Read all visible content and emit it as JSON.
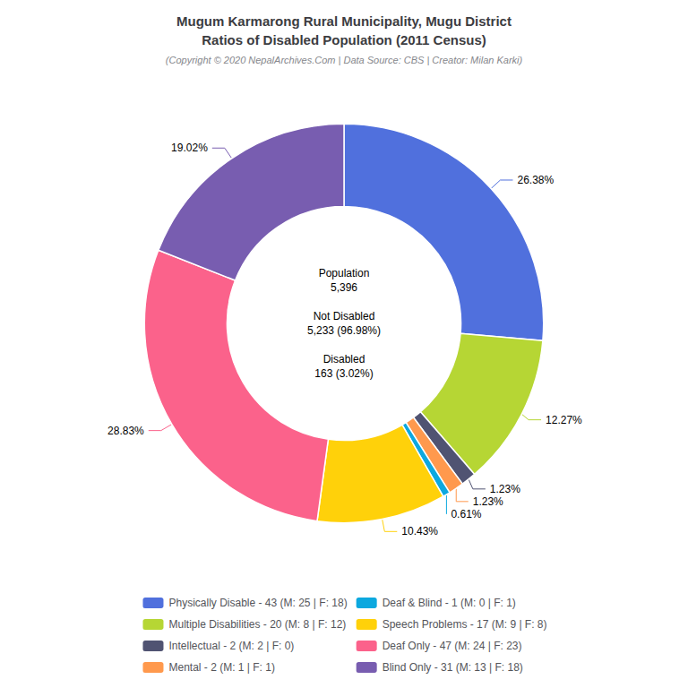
{
  "chart_data": {
    "type": "pie",
    "title": "Mugum Karmarong Rural Municipality, Mugu District\nRatios of Disabled Population (2011 Census)",
    "subtitle": "(Copyright © 2020 NepalArchives.Com | Data Source: CBS | Creator: Milan Karki)",
    "categories": [
      "Physically Disable - 43 (M: 25 | F: 18)",
      "Multiple Disabilities - 20 (M: 8 | F: 12)",
      "Intellectual - 2 (M: 2 | F: 0)",
      "Mental - 2 (M: 1 | F: 1)",
      "Deaf & Blind - 1 (M: 0 | F: 1)",
      "Speech Problems - 17 (M: 9 | F: 8)",
      "Deaf Only - 47 (M: 24 | F: 23)",
      "Blind Only - 31 (M: 13 | F: 18)"
    ],
    "values": [
      26.38,
      12.27,
      1.23,
      1.23,
      0.61,
      10.43,
      28.83,
      19.02
    ],
    "value_labels": [
      "26.38%",
      "12.27%",
      "1.23%",
      "1.23%",
      "0.61%",
      "10.43%",
      "28.83%",
      "19.02%"
    ],
    "data_labels": true,
    "annotations": [
      "Population\n5,396\n\nNot Disabled\n5,233 (96.98%)\n\nDisabled\n163 (3.02%)"
    ],
    "legend": "bottom"
  }
}
